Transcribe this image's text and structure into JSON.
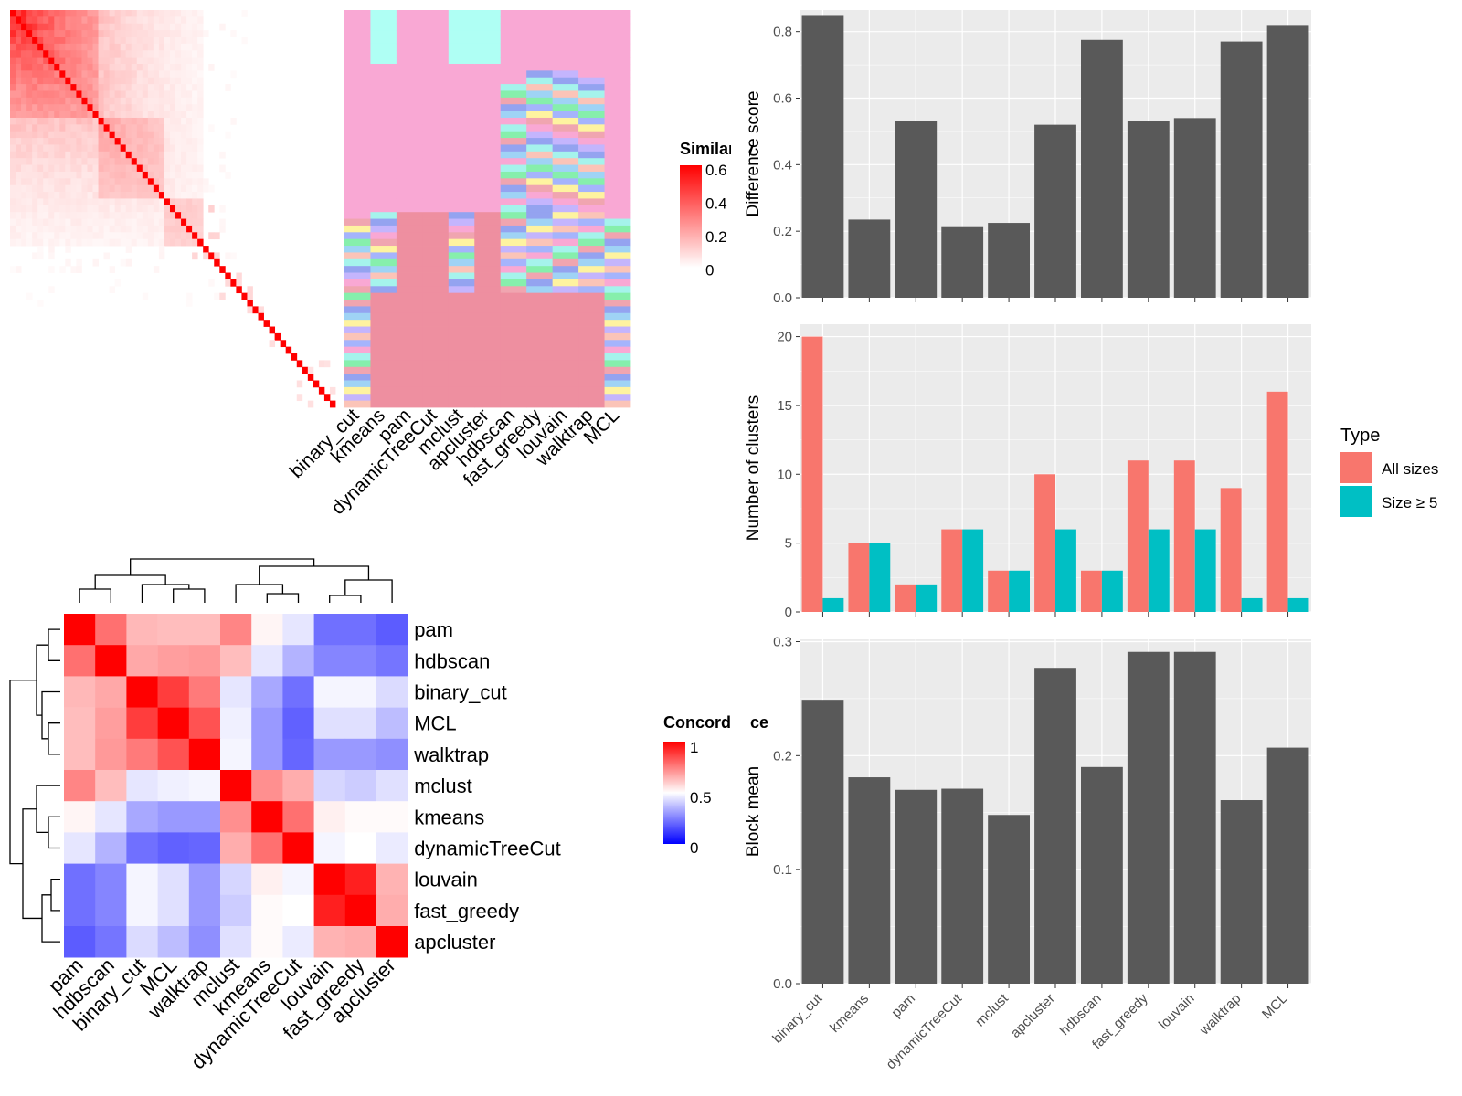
{
  "colors": {
    "bar_gray": "#595959",
    "panel_bg": "#EBEBEB",
    "grid_major": "#FFFFFF",
    "all_sizes": "#F8766D",
    "size5": "#00BFC4",
    "heat_low": "#0000FF",
    "heat_mid": "#FFFFFF",
    "heat_high": "#FF0000",
    "sim_low": "#FFFFFF",
    "sim_high": "#FF0000"
  },
  "chart_data": [
    {
      "type": "heatmap",
      "panel": "similarity",
      "legend_title": "Similarity",
      "legend_ticks": [
        "0.6",
        "0.4",
        "0.2",
        "0"
      ],
      "value_range": [
        0,
        0.6
      ],
      "n_clusters": 59
    },
    {
      "type": "heatmap",
      "panel": "cluster_assignment",
      "columns": [
        "binary_cut",
        "kmeans",
        "pam",
        "dynamicTreeCut",
        "mclust",
        "apcluster",
        "hdbscan",
        "fast_greedy",
        "louvain",
        "walktrap",
        "MCL"
      ]
    },
    {
      "type": "heatmap",
      "panel": "concordance",
      "legend_title": "Concordance",
      "legend_ticks": [
        "1",
        "0.5",
        "0"
      ],
      "value_range": [
        0,
        1
      ],
      "rows": [
        "pam",
        "hdbscan",
        "binary_cut",
        "MCL",
        "walktrap",
        "mclust",
        "kmeans",
        "dynamicTreeCut",
        "louvain",
        "fast_greedy",
        "apcluster"
      ],
      "columns": [
        "pam",
        "hdbscan",
        "binary_cut",
        "MCL",
        "walktrap",
        "mclust",
        "kmeans",
        "dynamicTreeCut",
        "louvain",
        "fast_greedy",
        "apcluster"
      ],
      "values": [
        [
          1.0,
          0.78,
          0.64,
          0.63,
          0.63,
          0.74,
          0.52,
          0.45,
          0.22,
          0.22,
          0.18
        ],
        [
          0.78,
          1.0,
          0.67,
          0.69,
          0.7,
          0.63,
          0.45,
          0.35,
          0.26,
          0.26,
          0.23
        ],
        [
          0.64,
          0.67,
          1.0,
          0.88,
          0.76,
          0.45,
          0.33,
          0.22,
          0.48,
          0.48,
          0.43
        ],
        [
          0.63,
          0.69,
          0.88,
          1.0,
          0.84,
          0.47,
          0.3,
          0.19,
          0.44,
          0.44,
          0.37
        ],
        [
          0.63,
          0.7,
          0.76,
          0.84,
          1.0,
          0.48,
          0.3,
          0.2,
          0.3,
          0.3,
          0.28
        ],
        [
          0.74,
          0.63,
          0.45,
          0.47,
          0.48,
          1.0,
          0.72,
          0.66,
          0.42,
          0.4,
          0.44
        ],
        [
          0.52,
          0.45,
          0.33,
          0.3,
          0.3,
          0.72,
          1.0,
          0.78,
          0.53,
          0.51,
          0.51
        ],
        [
          0.45,
          0.35,
          0.22,
          0.19,
          0.2,
          0.66,
          0.78,
          1.0,
          0.48,
          0.5,
          0.46
        ],
        [
          0.22,
          0.26,
          0.48,
          0.44,
          0.3,
          0.42,
          0.53,
          0.48,
          1.0,
          0.94,
          0.65
        ],
        [
          0.22,
          0.26,
          0.48,
          0.44,
          0.3,
          0.4,
          0.51,
          0.5,
          0.94,
          1.0,
          0.66
        ],
        [
          0.18,
          0.23,
          0.43,
          0.37,
          0.28,
          0.44,
          0.51,
          0.46,
          0.65,
          0.66,
          1.0
        ]
      ]
    },
    {
      "type": "bar",
      "panel": "difference_score",
      "categories": [
        "binary_cut",
        "kmeans",
        "pam",
        "dynamicTreeCut",
        "mclust",
        "apcluster",
        "hdbscan",
        "fast_greedy",
        "louvain",
        "walktrap",
        "MCL"
      ],
      "values": [
        0.85,
        0.235,
        0.53,
        0.215,
        0.225,
        0.52,
        0.775,
        0.53,
        0.54,
        0.77,
        0.82
      ],
      "ylabel": "Difference score",
      "ylim": [
        0,
        0.865
      ],
      "yticks": [
        "0.0",
        "0.2",
        "0.4",
        "0.6",
        "0.8"
      ],
      "grid": true
    },
    {
      "type": "bar",
      "panel": "number_of_clusters",
      "categories": [
        "binary_cut",
        "kmeans",
        "pam",
        "dynamicTreeCut",
        "mclust",
        "apcluster",
        "hdbscan",
        "fast_greedy",
        "louvain",
        "walktrap",
        "MCL"
      ],
      "series": [
        {
          "name": "All sizes",
          "values": [
            20,
            5,
            2,
            6,
            3,
            10,
            3,
            11,
            11,
            9,
            16
          ]
        },
        {
          "name": "Size ≥ 5",
          "values": [
            1,
            5,
            2,
            6,
            3,
            6,
            3,
            6,
            6,
            1,
            1
          ]
        }
      ],
      "ylabel": "Number of clusters",
      "ylim": [
        0,
        20.9
      ],
      "yticks": [
        "0",
        "5",
        "10",
        "15",
        "20"
      ],
      "legend_title": "Type",
      "legend_position": "right",
      "grid": true
    },
    {
      "type": "bar",
      "panel": "block_mean",
      "categories": [
        "binary_cut",
        "kmeans",
        "pam",
        "dynamicTreeCut",
        "mclust",
        "apcluster",
        "hdbscan",
        "fast_greedy",
        "louvain",
        "walktrap",
        "MCL"
      ],
      "values": [
        0.249,
        0.181,
        0.17,
        0.171,
        0.148,
        0.277,
        0.19,
        0.291,
        0.291,
        0.161,
        0.207
      ],
      "ylabel": "Block mean",
      "ylim": [
        0,
        0.302
      ],
      "yticks": [
        "0.0",
        "0.1",
        "0.2",
        "0.3"
      ],
      "grid": true
    }
  ]
}
